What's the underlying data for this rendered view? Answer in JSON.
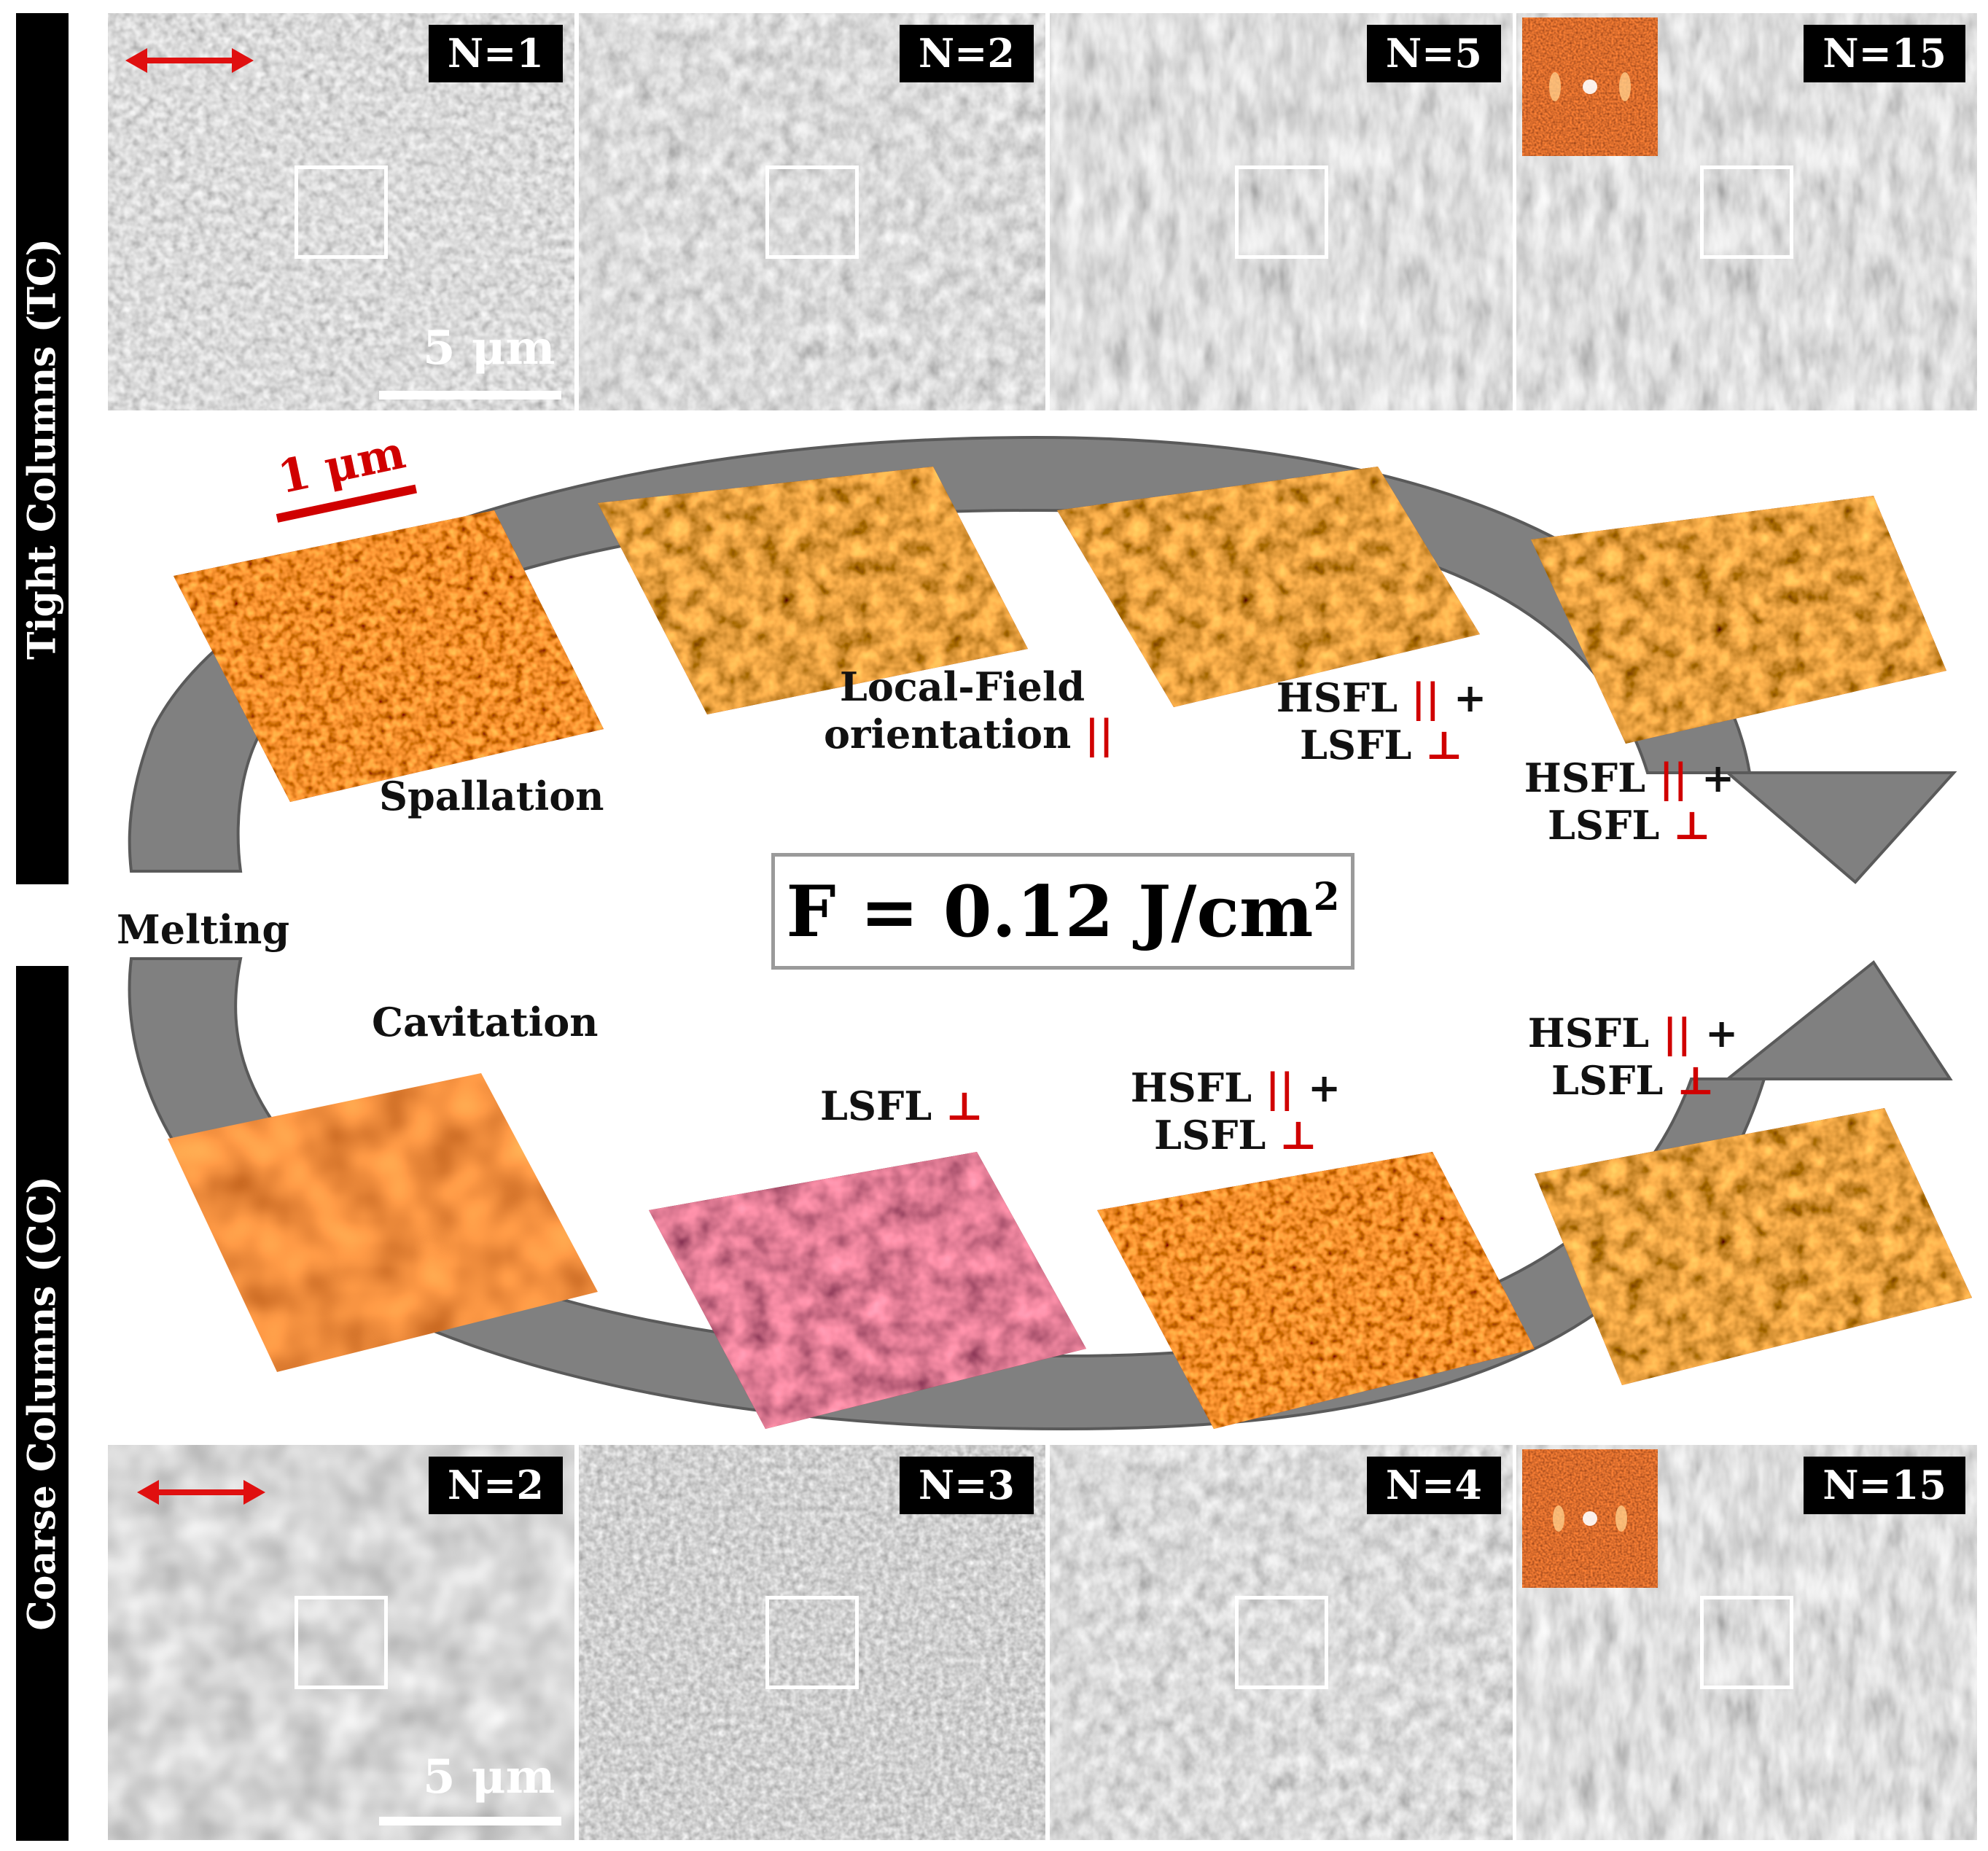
{
  "rows": {
    "tc_label": "Tight Columns (TC)",
    "cc_label": "Coarse Columns (CC)"
  },
  "sem_top": {
    "panels": [
      {
        "label": "N=1"
      },
      {
        "label": "N=2"
      },
      {
        "label": "N=5"
      },
      {
        "label": "N=15"
      }
    ],
    "scale": "5 μm"
  },
  "sem_bottom": {
    "panels": [
      {
        "label": "N=2"
      },
      {
        "label": "N=3"
      },
      {
        "label": "N=4"
      },
      {
        "label": "N=15"
      }
    ],
    "scale": "5 μm"
  },
  "afm_scale": "1 μm",
  "labels": {
    "spallation": "Spallation",
    "melting": "Melting",
    "cavitation": "Cavitation",
    "local_field_1": "Local-Field",
    "local_field_2": "orientation",
    "hsfl": "HSFL",
    "lsfl": "LSFL",
    "plus": "+",
    "parallel": "||",
    "perp": "⊥"
  },
  "fluence": {
    "text": "F = 0.12 J/cm",
    "exponent": "2"
  },
  "colors": {
    "polarization_arrow": "#e01010",
    "perp_parallel_red": "#d00000",
    "cycle_arrow": "#808080"
  }
}
